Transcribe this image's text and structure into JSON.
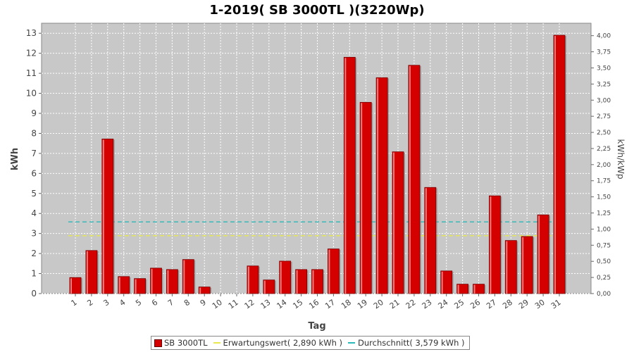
{
  "chart_data": {
    "type": "bar",
    "title": "1-2019( SB 3000TL )(3220Wp)",
    "xlabel": "Tag",
    "ylabel": "kWh",
    "ylabel_right": "kWh/kWp",
    "ylim": [
      0,
      13.5
    ],
    "ylim_right": [
      0,
      4.193
    ],
    "yticks": [
      "0",
      "1",
      "2",
      "3",
      "4",
      "5",
      "6",
      "7",
      "8",
      "9",
      "10",
      "11",
      "12",
      "13"
    ],
    "yticks_right": [
      "0,00",
      "0,25",
      "0,50",
      "0,75",
      "1,00",
      "1,25",
      "1,50",
      "1,75",
      "2,00",
      "2,25",
      "2,50",
      "2,75",
      "3,00",
      "3,25",
      "3,50",
      "3,75",
      "4,00"
    ],
    "categories": [
      "1",
      "2",
      "3",
      "4",
      "5",
      "6",
      "7",
      "8",
      "9",
      "10",
      "11",
      "12",
      "13",
      "14",
      "15",
      "16",
      "17",
      "18",
      "19",
      "20",
      "21",
      "22",
      "23",
      "24",
      "25",
      "26",
      "27",
      "28",
      "29",
      "30",
      "31"
    ],
    "series": [
      {
        "name": "SB 3000TL",
        "color": "#d40000",
        "values": [
          0.8,
          2.15,
          7.72,
          0.85,
          0.75,
          1.27,
          1.2,
          1.7,
          0.33,
          0,
          0,
          1.38,
          0.68,
          1.62,
          1.2,
          1.2,
          2.23,
          11.8,
          9.55,
          10.78,
          7.08,
          11.4,
          5.3,
          1.13,
          0.47,
          0.47,
          4.88,
          2.65,
          2.85,
          3.93,
          12.9
        ]
      }
    ],
    "reference_lines": [
      {
        "name": "Erwartungswert",
        "value": 2.89,
        "color": "#e8e84a"
      },
      {
        "name": "Durchschnitt",
        "value": 3.579,
        "color": "#2ab8b8"
      }
    ],
    "legend_position": "bottom",
    "grid": true
  },
  "legend": {
    "series_label": "SB 3000TL",
    "expect_label": "Erwartungswert( 2,890 kWh )",
    "avg_label": "Durchschnitt( 3,579 kWh )"
  },
  "colors": {
    "plot_bg": "#c8c8c8",
    "bar": "#d40000",
    "expect_line": "#e8e84a",
    "avg_line": "#2ab8b8"
  }
}
